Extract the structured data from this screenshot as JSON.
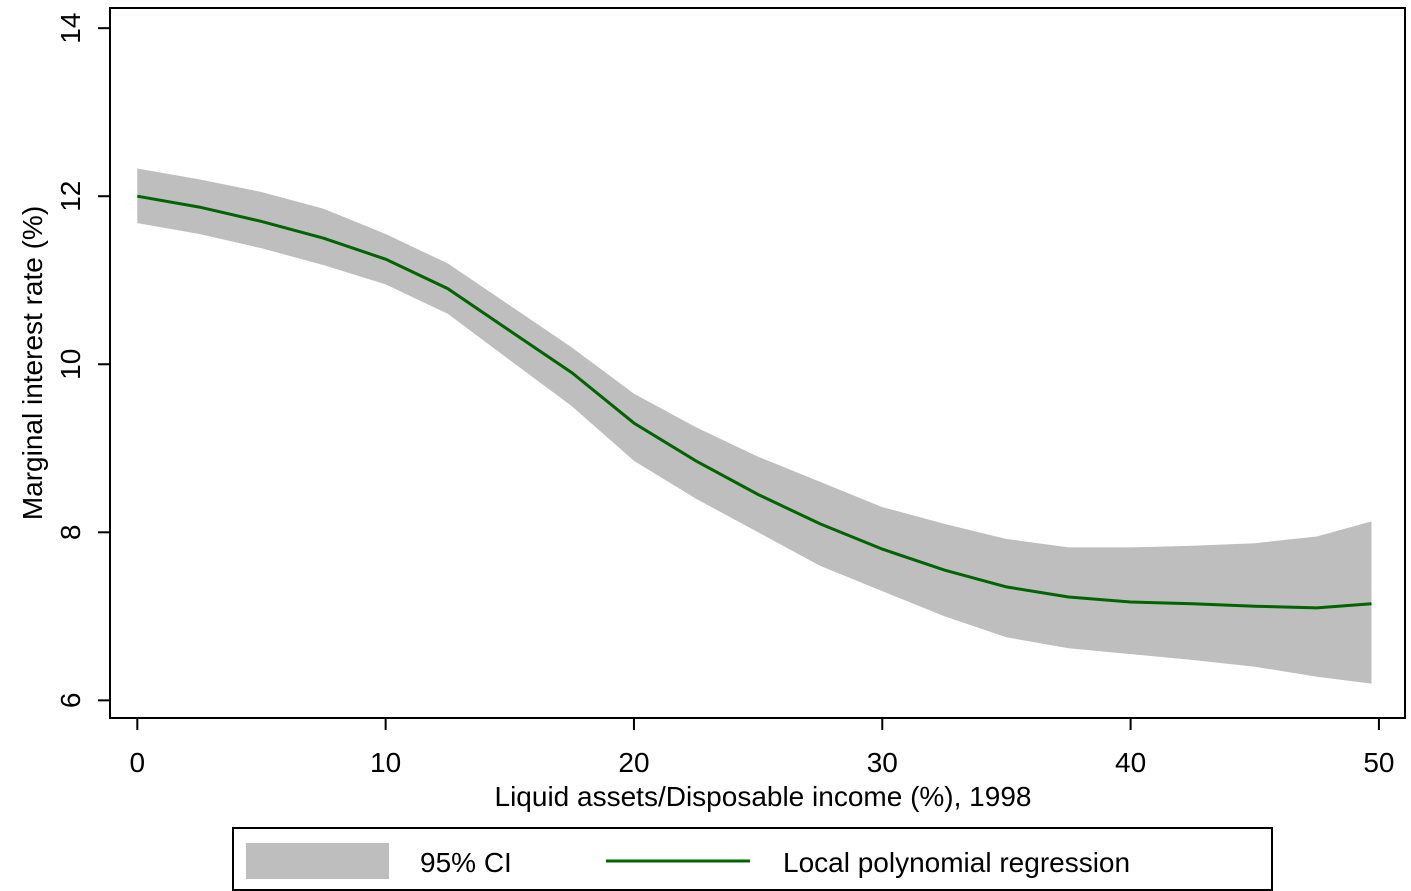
{
  "chart_data": {
    "type": "line",
    "x_label": "Liquid assets/Disposable income (%), 1998",
    "y_label": "Marginal interest rate (%)",
    "x": [
      0,
      2.5,
      5,
      7.5,
      10,
      12.5,
      15,
      17.5,
      20,
      22.5,
      25,
      27.5,
      30,
      32.5,
      35,
      37.5,
      40,
      42.5,
      45,
      47.5,
      49.7
    ],
    "series": [
      {
        "name": "95% CI",
        "color": "#bebebe",
        "upper": [
          12.33,
          12.2,
          12.05,
          11.85,
          11.55,
          11.2,
          10.7,
          10.2,
          9.65,
          9.25,
          8.9,
          8.6,
          8.3,
          8.1,
          7.92,
          7.82,
          7.82,
          7.84,
          7.87,
          7.95,
          8.13
        ],
        "lower": [
          11.68,
          11.55,
          11.38,
          11.18,
          10.95,
          10.6,
          10.05,
          9.5,
          8.85,
          8.4,
          8.0,
          7.6,
          7.3,
          7.0,
          6.75,
          6.62,
          6.55,
          6.48,
          6.4,
          6.28,
          6.2
        ]
      },
      {
        "name": "Local polynomial regression",
        "color": "#006400",
        "values": [
          12.0,
          11.87,
          11.7,
          11.5,
          11.25,
          10.9,
          10.4,
          9.9,
          9.3,
          8.85,
          8.45,
          8.1,
          7.8,
          7.55,
          7.35,
          7.23,
          7.17,
          7.15,
          7.12,
          7.1,
          7.15
        ]
      }
    ],
    "xlim": [
      -1.1,
      51.05
    ],
    "ylim": [
      5.79,
      14.24
    ],
    "xticks": [
      0,
      10,
      20,
      30,
      40,
      50
    ],
    "yticks": [
      6,
      8,
      10,
      12,
      14
    ],
    "legend": "bottom"
  }
}
